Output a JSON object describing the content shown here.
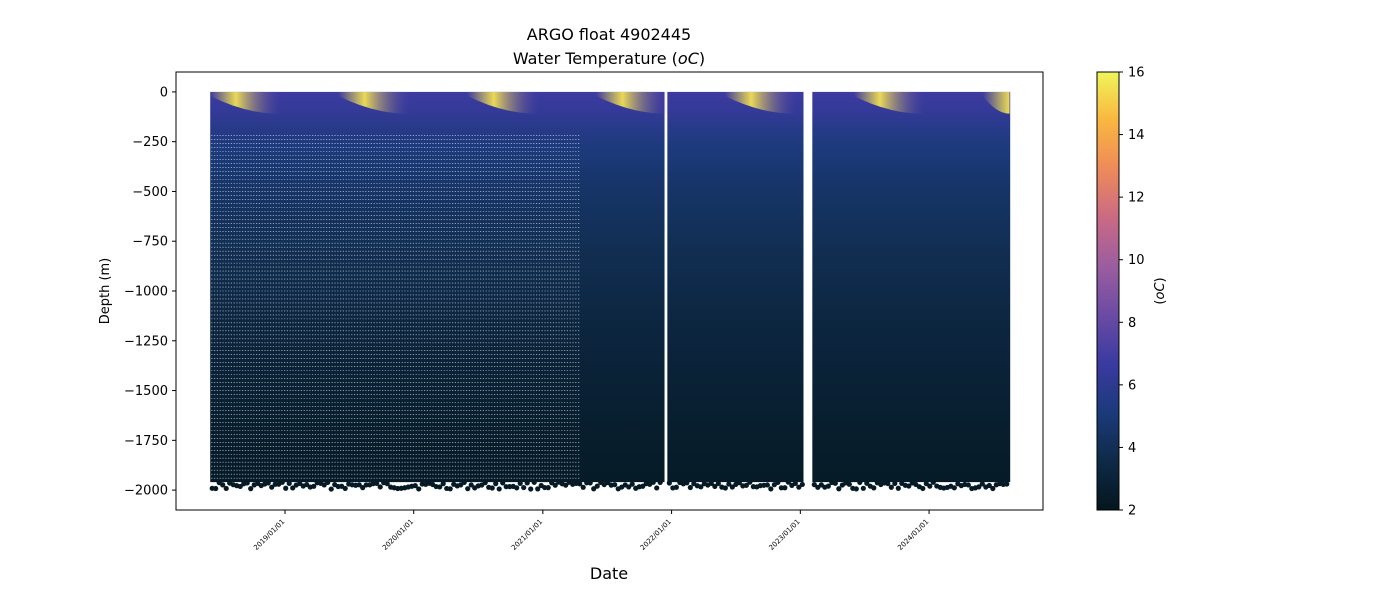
{
  "chart_data": {
    "type": "scatter",
    "title_line1": "ARGO float 4902445",
    "title_line2_prefix": "Water Temperature (",
    "title_line2_unit": "oC",
    "title_line2_suffix": ")",
    "xlabel": "Date",
    "ylabel": "Depth (m)",
    "x_ticks": [
      "2019/01/01",
      "2020/01/01",
      "2021/01/01",
      "2022/01/01",
      "2023/01/01",
      "2024/01/01"
    ],
    "y_ticks": [
      0,
      -250,
      -500,
      -750,
      -1000,
      -1250,
      -1500,
      -1750,
      -2000
    ],
    "ylim": [
      -2100,
      100
    ],
    "xlim": [
      "2018/02/26",
      "2024/11/19"
    ],
    "data_extent": {
      "date_start": "2018/06/03",
      "date_end": "2024/08/18",
      "depth_top": 0,
      "depth_bottom": -1960,
      "dense_sampling_until": "2021/04/18"
    },
    "gaps": [
      [
        "2021/12/12",
        "2021/12/20"
      ],
      [
        "2023/01/10",
        "2023/02/04"
      ]
    ],
    "temperature_profile": {
      "depth": [
        0,
        -100,
        -200,
        -300,
        -500,
        -800,
        -1200,
        -1700,
        -2000
      ],
      "winter_temp": [
        6.8,
        6.3,
        5.6,
        5.1,
        4.5,
        3.9,
        3.2,
        2.6,
        2.3
      ],
      "summer_surface_temp": 15.5
    },
    "colorbar": {
      "label_prefix": "(",
      "label_unit": "oC",
      "label_suffix": ")",
      "min": 2,
      "max": 16,
      "ticks": [
        2,
        4,
        6,
        8,
        10,
        12,
        14,
        16
      ],
      "colormap": "thermal",
      "stops": [
        "#04161e",
        "#0e2a47",
        "#1b3a7a",
        "#3a3aa0",
        "#6a4ba3",
        "#9b5da0",
        "#c96a84",
        "#ee8a5a",
        "#f9b640",
        "#f0f55a"
      ]
    }
  }
}
